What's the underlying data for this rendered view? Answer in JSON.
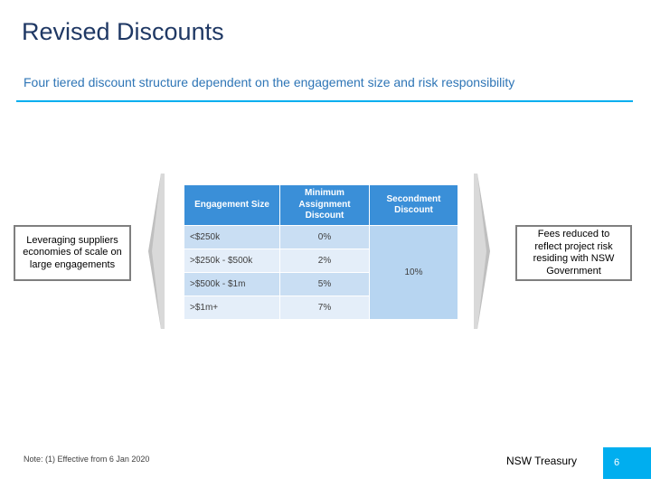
{
  "slide": {
    "title": "Revised Discounts",
    "subtitle": "Four tiered discount structure dependent on the engagement size and risk responsibility"
  },
  "left_note": "Leveraging suppliers economies of scale on large engagements",
  "right_note": "Fees reduced to reflect project risk residing with NSW Government",
  "table": {
    "headers": [
      "Engagement Size",
      "Minimum Assignment Discount",
      "Secondment Discount"
    ],
    "rows": [
      {
        "size": "<$250k",
        "discount": "0%"
      },
      {
        "size": ">$250k - $500k",
        "discount": "2%"
      },
      {
        "size": ">$500k - $1m",
        "discount": "5%"
      },
      {
        "size": ">$1m+",
        "discount": "7%"
      }
    ],
    "secondment_discount": "10%",
    "colors": {
      "header": "#3a8fd8",
      "row_dark": "#c9def3",
      "row_light": "#e4eef9"
    }
  },
  "footer": {
    "note": "Note: (1) Effective from 6 Jan 2020",
    "organization": "NSW Treasury",
    "page_number": "6",
    "accent_color": "#00aeef"
  }
}
